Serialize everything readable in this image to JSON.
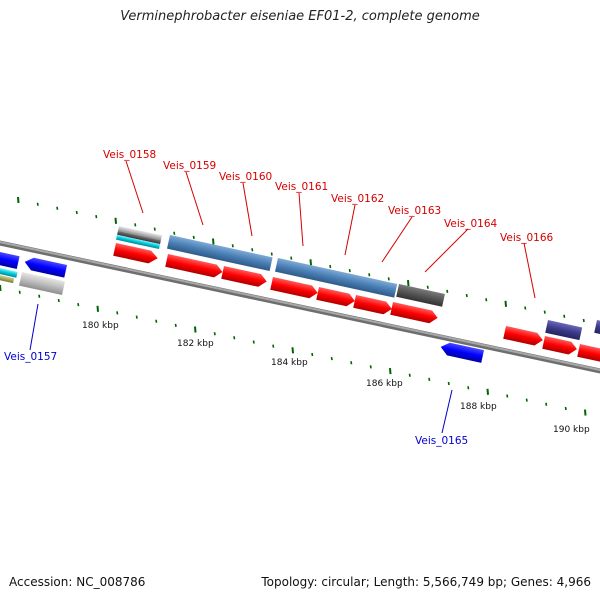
{
  "title": "Verminephrobacter eiseniae EF01-2, complete genome",
  "footer": {
    "accession": "Accession: NC_008786",
    "topology": "Topology: circular; Length: 5,566,749 bp; Genes: 4,966"
  },
  "colors": {
    "backbone": "#8a8a8a",
    "forward_gene": "#ff0000",
    "reverse_gene": "#0000ff",
    "label_forward": "#d40000",
    "label_reverse": "#0000cc",
    "tick": "#006400",
    "feature_steelblue": "#4a7fb5",
    "feature_gray": "#555555",
    "feature_slate": "#3c3a8a",
    "feature_cyan": "#00c8d8",
    "feature_silver": "#bdbdbd",
    "feature_olive": "#a8a860"
  },
  "axis": {
    "unit": "kbp",
    "tick_labels": [
      {
        "value": 180,
        "text": "180 kbp"
      },
      {
        "value": 182,
        "text": "182 kbp"
      },
      {
        "value": 184,
        "text": "184 kbp"
      },
      {
        "value": 186,
        "text": "186 kbp"
      },
      {
        "value": 188,
        "text": "188 kbp"
      },
      {
        "value": 190,
        "text": "190 kbp"
      }
    ]
  },
  "gene_labels": {
    "top": [
      "Veis_0158",
      "Veis_0159",
      "Veis_0160",
      "Veis_0161",
      "Veis_0162",
      "Veis_0163",
      "Veis_0164",
      "Veis_0166"
    ],
    "bottom": [
      "Veis_0157",
      "Veis_0165"
    ]
  }
}
